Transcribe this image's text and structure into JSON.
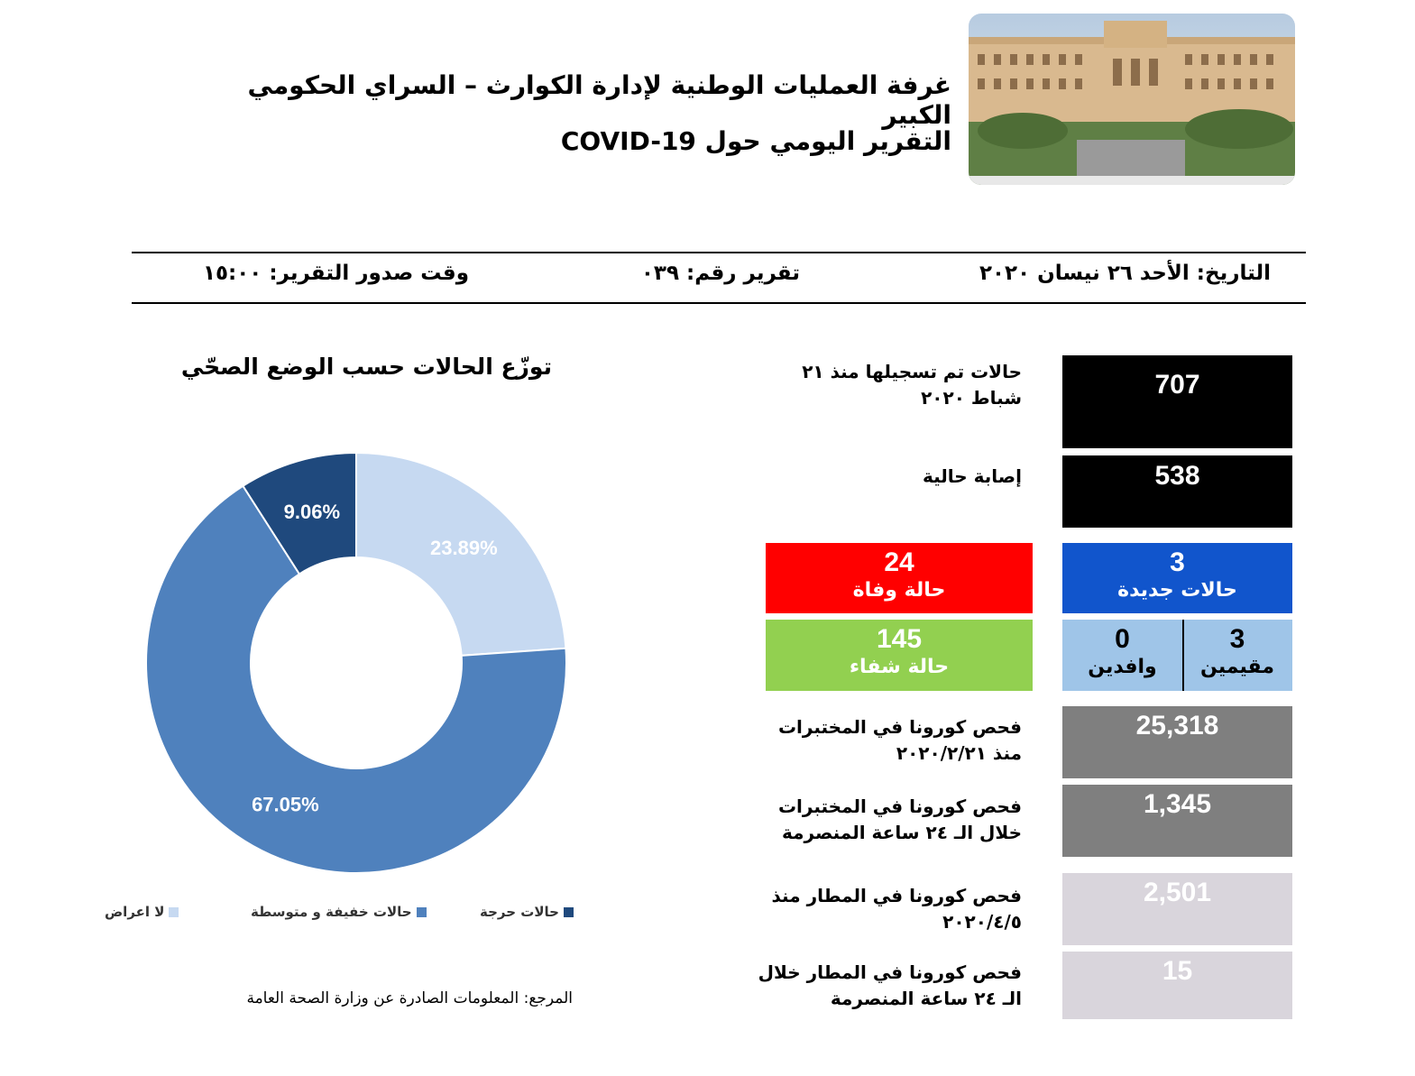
{
  "header": {
    "title_line1": "غرفة العمليات الوطنية لإدارة الكوارث – السراي الحكومي الكبير",
    "title_line2": "التقرير اليومي حول COVID-19"
  },
  "meta": {
    "date": "التاريخ: الأحد ٢٦ نيسان ٢٠٢٠",
    "report_number": "تقرير رقم: ٠٣٩",
    "issue_time": "وقت صدور التقرير: ١٥:٠٠"
  },
  "stats": {
    "registered_label": "حالات تم تسجيلها منذ ٢١ شباط ٢٠٢٠",
    "registered_value": "707",
    "current_label": "إصابة حالية",
    "current_value": "538",
    "new_value": "3",
    "new_label": "حالات جديدة",
    "deaths_value": "24",
    "deaths_label": "حالة وفاة",
    "recovered_value": "145",
    "recovered_label": "حالة شفاء",
    "residents_value": "3",
    "residents_label": "مقيمين",
    "arrivals_value": "0",
    "arrivals_label": "وافدين",
    "lab_total_label": "فحص كورونا في المختبرات منذ ٢٠٢٠/٢/٢١",
    "lab_total_value": "25,318",
    "lab_24h_label": "فحص كورونا في المختبرات خلال الـ ٢٤ ساعة المنصرمة",
    "lab_24h_value": "1,345",
    "airport_total_label": "فحص كورونا في المطار منذ ٢٠٢٠/٤/٥",
    "airport_total_value": "2,501",
    "airport_24h_label": "فحص كورونا في المطار خلال الـ ٢٤ ساعة المنصرمة",
    "airport_24h_value": "15"
  },
  "colors": {
    "black_box": "#000000",
    "new_cases": "#1155cc",
    "deaths": "#ff0000",
    "recovered": "#92d050",
    "split_box": "#9fc5e8",
    "lab_box": "#7f7f7f",
    "airport_box": "#d9d5dc"
  },
  "chart_data": {
    "type": "pie",
    "title": "توزّع الحالات حسب الوضع الصحّي",
    "labels": [
      "لا اعراض",
      "حالات خفيفة و متوسطة",
      "حالات حرجة"
    ],
    "values": [
      23.89,
      67.05,
      9.06
    ],
    "value_labels": [
      "23.89%",
      "67.05%",
      "9.06%"
    ],
    "colors": [
      "#c6d9f1",
      "#4f81bd",
      "#1f497d"
    ],
    "label_colors": [
      "#ffffff",
      "#ffffff",
      "#ffffff"
    ],
    "donut": true,
    "legend_position": "bottom"
  },
  "footer": {
    "source": "المرجع: المعلومات الصادرة عن وزارة الصحة العامة"
  }
}
